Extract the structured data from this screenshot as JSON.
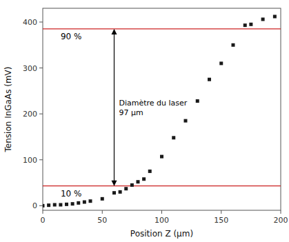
{
  "chart_data": {
    "type": "scatter",
    "x": [
      0,
      5,
      10,
      15,
      20,
      25,
      30,
      35,
      40,
      50,
      60,
      65,
      70,
      75,
      80,
      85,
      90,
      100,
      110,
      120,
      130,
      140,
      150,
      160,
      170,
      175,
      185,
      195
    ],
    "values": [
      0,
      1,
      2,
      2,
      3,
      4,
      6,
      8,
      10,
      15,
      28,
      30,
      37,
      45,
      52,
      58,
      75,
      107,
      148,
      185,
      228,
      275,
      310,
      350,
      393,
      395,
      406,
      412
    ],
    "color": "#1a1a1a",
    "marker": "square",
    "xlabel": "Position Z (μm)",
    "ylabel": "Tension InGaAs (mV)",
    "xlim": [
      0,
      200
    ],
    "ylim": [
      -10,
      430
    ],
    "xticks": [
      0,
      50,
      100,
      150,
      200
    ],
    "yticks": [
      0,
      100,
      200,
      300,
      400
    ],
    "reference_lines": [
      {
        "value": 385,
        "label": "90 %",
        "color": "#cc2222"
      },
      {
        "value": 43,
        "label": "10 %",
        "color": "#cc2222"
      }
    ],
    "annotations": [
      {
        "text": "Diamètre du laser\n97 μm"
      }
    ]
  }
}
